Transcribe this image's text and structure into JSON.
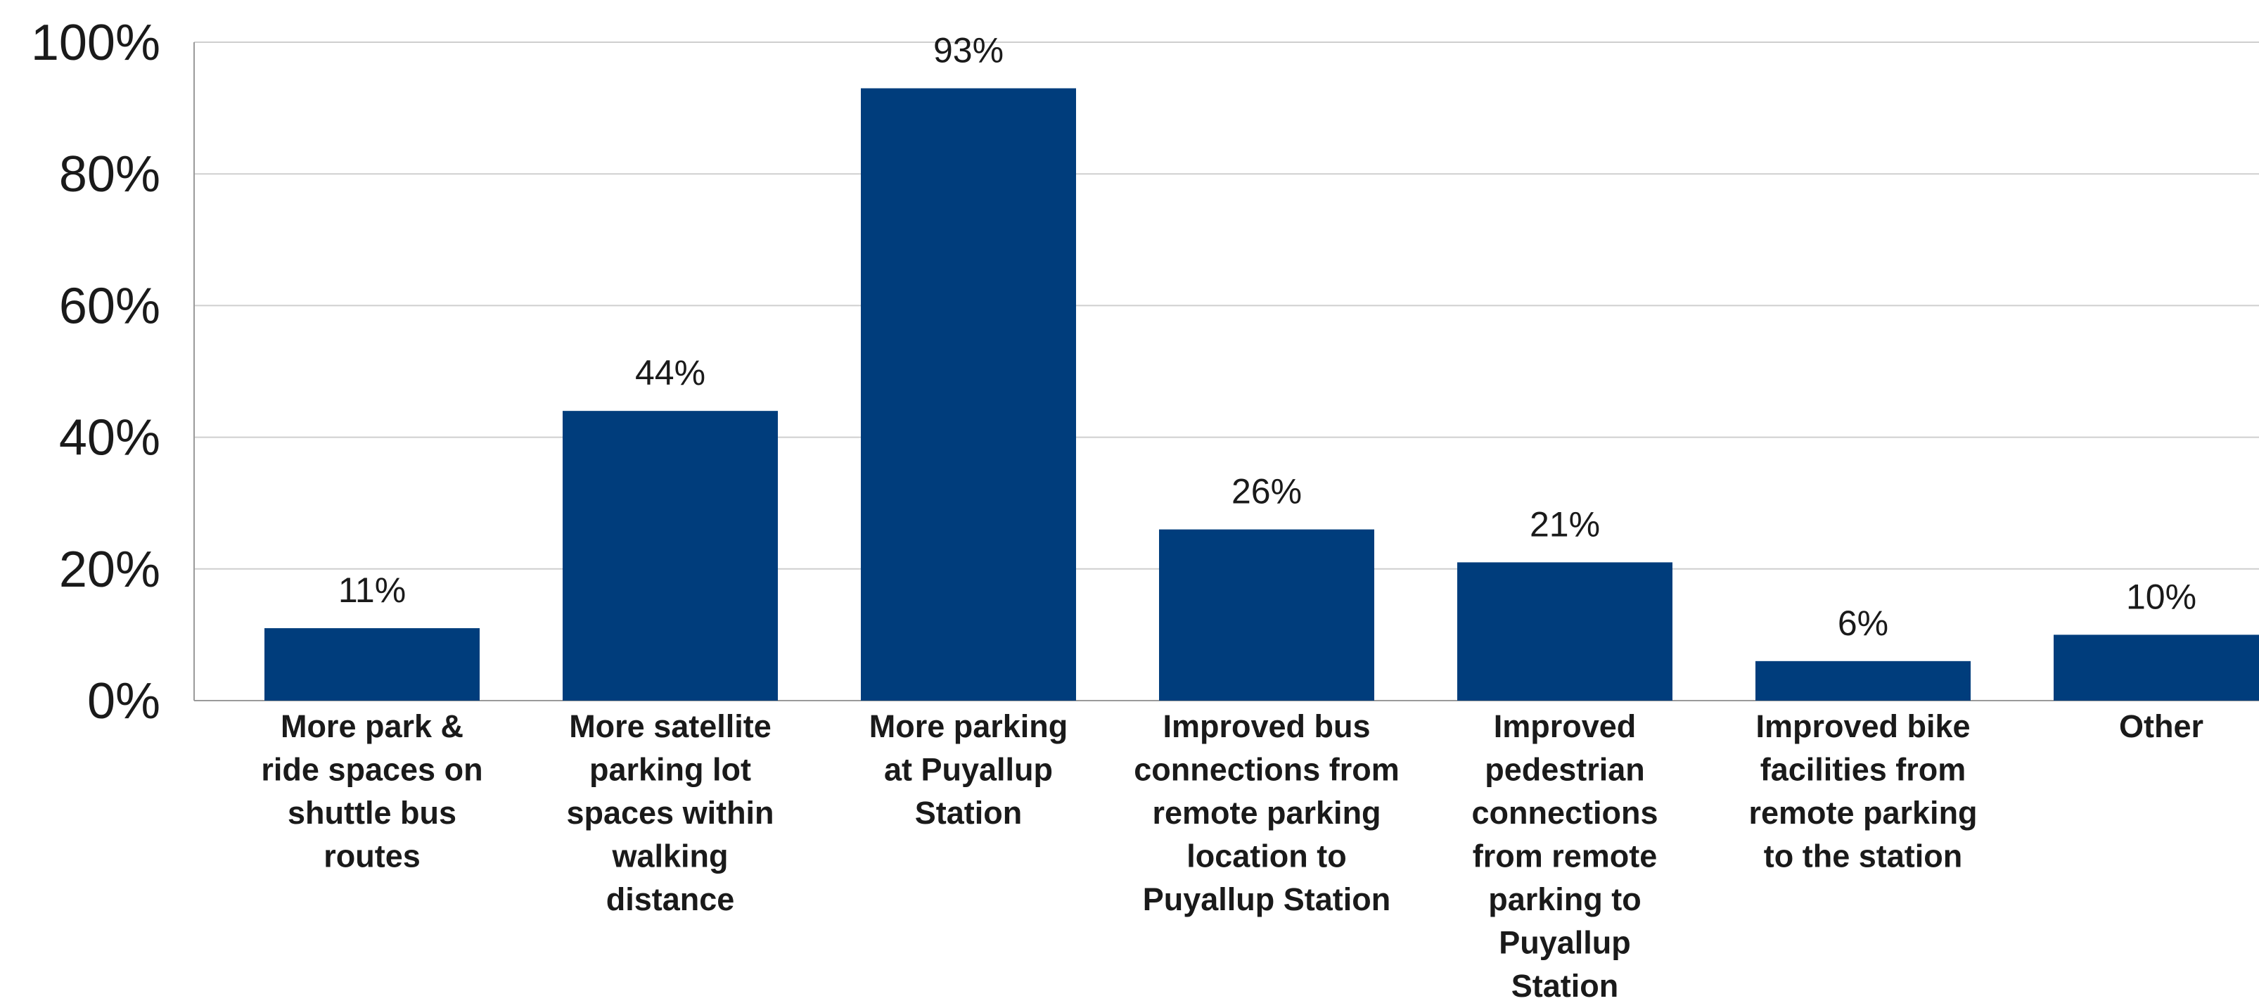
{
  "chart_data": {
    "type": "bar",
    "title": "",
    "xlabel": "",
    "ylabel": "",
    "ylim": [
      0,
      100
    ],
    "yticks": [
      0,
      20,
      40,
      60,
      80,
      100
    ],
    "ytick_labels": [
      "0%",
      "20%",
      "40%",
      "60%",
      "80%",
      "100%"
    ],
    "grid": true,
    "bar_color": "#003d7c",
    "grid_color": "#cfcfcf",
    "categories": [
      [
        "More park &",
        "ride spaces on",
        "shuttle bus",
        "routes"
      ],
      [
        "More satellite",
        "parking lot",
        "spaces within",
        "walking",
        "distance"
      ],
      [
        "More parking",
        "at Puyallup",
        "Station"
      ],
      [
        "Improved bus",
        "connections from",
        "remote parking",
        "location to",
        "Puyallup Station"
      ],
      [
        "Improved",
        "pedestrian",
        "connections",
        "from remote",
        "parking to",
        "Puyallup",
        "Station"
      ],
      [
        "Improved bike",
        "facilities from",
        "remote parking",
        "to the station"
      ],
      [
        "Other"
      ]
    ],
    "values": [
      11,
      44,
      93,
      26,
      21,
      6,
      10
    ],
    "data_labels": [
      "11%",
      "44%",
      "93%",
      "26%",
      "21%",
      "6%",
      "10%"
    ]
  }
}
